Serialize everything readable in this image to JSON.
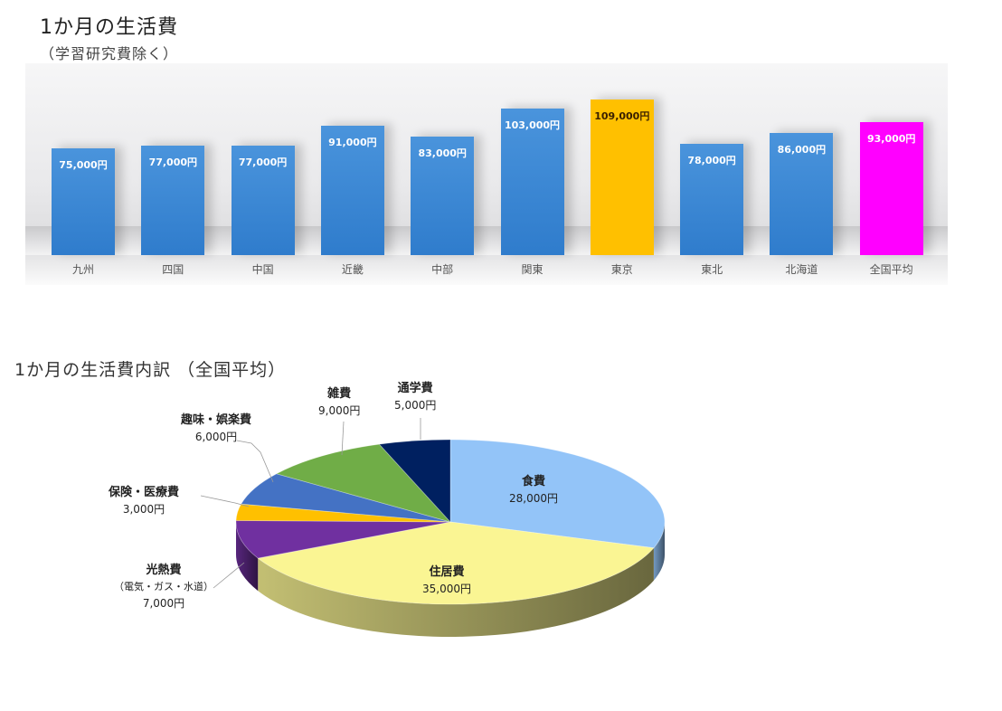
{
  "bar_chart": {
    "title": "1か月の生活費",
    "subtitle": "（学習研究費除く）"
  },
  "pie_chart": {
    "title": "1か月の生活費内訳 （全国平均）"
  },
  "chart_data": [
    {
      "type": "bar",
      "title": "1か月の生活費",
      "subtitle": "（学習研究費除く）",
      "categories": [
        "九州",
        "四国",
        "中国",
        "近畿",
        "中部",
        "関東",
        "東京",
        "東北",
        "北海道",
        "全国平均"
      ],
      "values": [
        75000,
        77000,
        77000,
        91000,
        83000,
        103000,
        109000,
        78000,
        86000,
        93000
      ],
      "value_labels": [
        "75,000円",
        "77,000円",
        "77,000円",
        "91,000円",
        "83,000円",
        "103,000円",
        "109,000円",
        "78,000円",
        "86,000円",
        "93,000円"
      ],
      "colors": [
        "#3a87d6",
        "#3a87d6",
        "#3a87d6",
        "#3a87d6",
        "#3a87d6",
        "#3a87d6",
        "#ffc000",
        "#3a87d6",
        "#3a87d6",
        "#ff00ff"
      ],
      "xlabel": "",
      "ylabel": "",
      "grid": false,
      "legend": "none"
    },
    {
      "type": "pie",
      "title": "1か月の生活費内訳 （全国平均）",
      "labels": [
        "食費",
        "住居費",
        "光熱費",
        "保険・医療費",
        "趣味・娯楽費",
        "雑費",
        "通学費"
      ],
      "label_notes": [
        "",
        "",
        "（電気・ガス・水道）",
        "",
        "",
        "",
        ""
      ],
      "values": [
        28000,
        35000,
        7000,
        3000,
        6000,
        9000,
        5000
      ],
      "value_labels": [
        "28,000円",
        "35,000円",
        "7,000円",
        "3,000円",
        "6,000円",
        "9,000円",
        "5,000円"
      ],
      "colors": [
        "#93c4f8",
        "#faf593",
        "#7030a0",
        "#ffc000",
        "#4472c4",
        "#70ad47",
        "#002060"
      ],
      "style": "3d",
      "legend": "none"
    }
  ]
}
